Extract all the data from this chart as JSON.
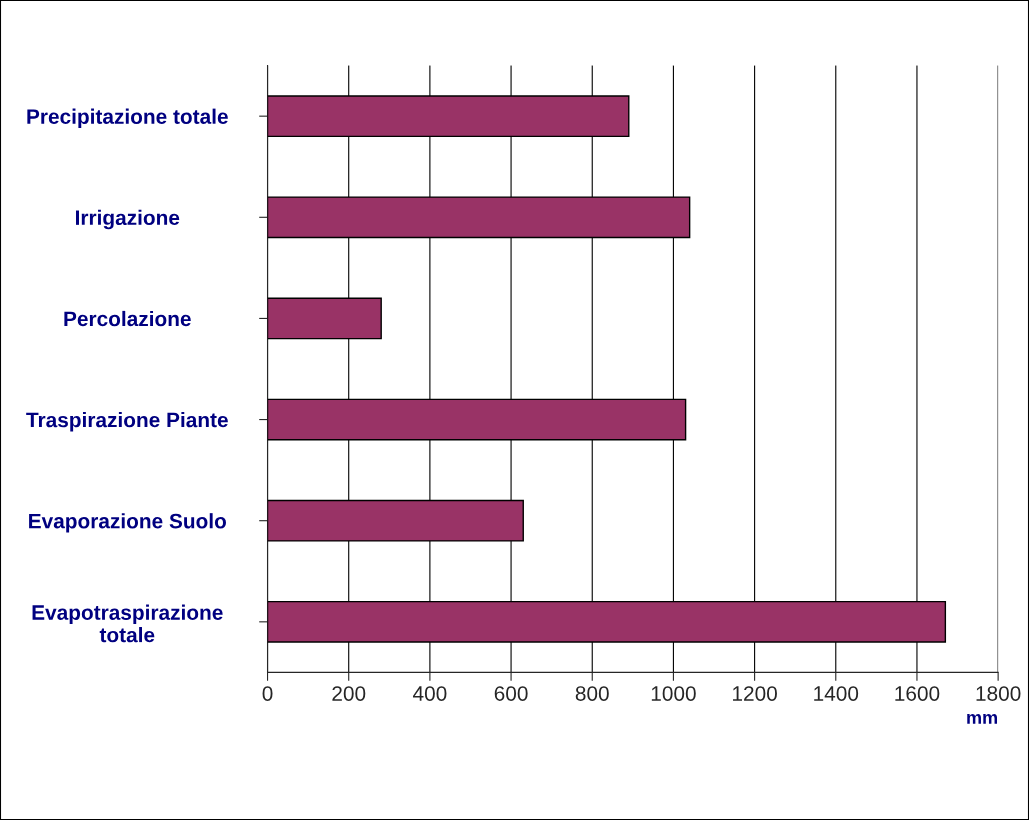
{
  "chart_data": {
    "type": "bar",
    "orientation": "horizontal",
    "xlabel": "mm",
    "categories": [
      "Precipitazione totale",
      "Irrigazione",
      "Percolazione",
      "Traspirazione Piante",
      "Evaporazione Suolo",
      "Evapotraspirazione\ntotale"
    ],
    "values": [
      890,
      1040,
      280,
      1030,
      630,
      1670
    ],
    "color": "#993366",
    "xlim": [
      0,
      1800
    ],
    "xticks": [
      0,
      200,
      400,
      600,
      800,
      1000,
      1200,
      1400,
      1600,
      1800
    ],
    "grid": "x"
  }
}
